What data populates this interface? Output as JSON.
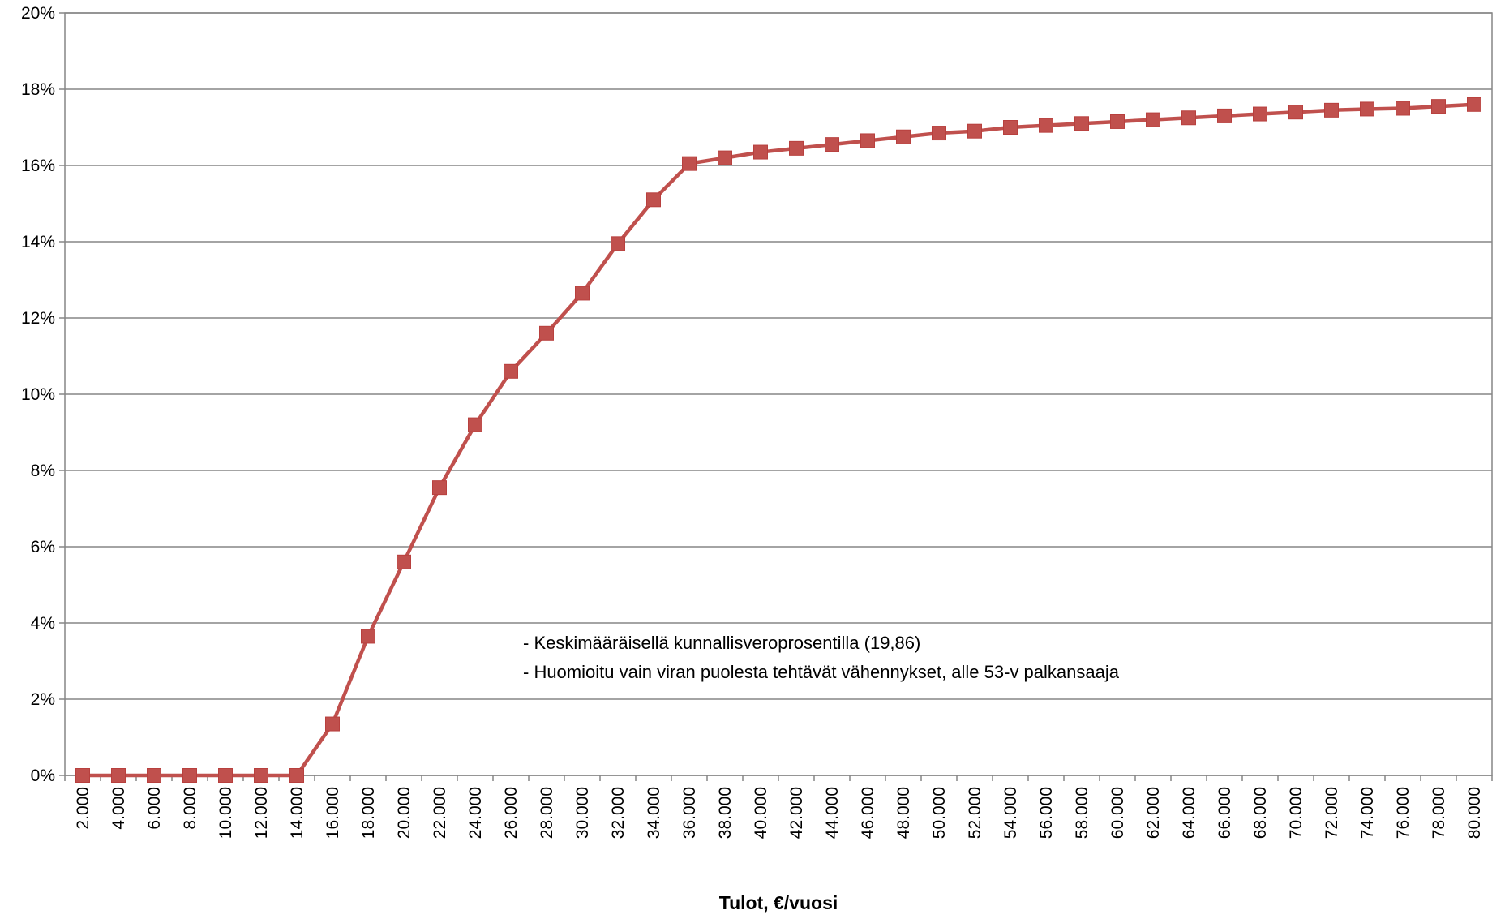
{
  "chart_data": {
    "type": "line",
    "title": "",
    "xlabel": "Tulot, €/vuosi",
    "ylabel": "",
    "ylim": [
      0,
      20
    ],
    "y_ticks": [
      "0%",
      "2%",
      "4%",
      "6%",
      "8%",
      "10%",
      "12%",
      "14%",
      "16%",
      "18%",
      "20%"
    ],
    "grid": true,
    "legend": "none",
    "line_color": "#c0504d",
    "categories": [
      "2.000",
      "4.000",
      "6.000",
      "8.000",
      "10.000",
      "12.000",
      "14.000",
      "16.000",
      "18.000",
      "20.000",
      "22.000",
      "24.000",
      "26.000",
      "28.000",
      "30.000",
      "32.000",
      "34.000",
      "36.000",
      "38.000",
      "40.000",
      "42.000",
      "44.000",
      "46.000",
      "48.000",
      "50.000",
      "52.000",
      "54.000",
      "56.000",
      "58.000",
      "60.000",
      "62.000",
      "64.000",
      "66.000",
      "68.000",
      "70.000",
      "72.000",
      "74.000",
      "76.000",
      "78.000",
      "80.000"
    ],
    "series": [
      {
        "values": [
          0,
          0,
          0,
          0,
          0,
          0,
          0,
          1.35,
          3.65,
          5.6,
          7.55,
          9.2,
          10.6,
          11.6,
          12.65,
          13.95,
          15.1,
          16.05,
          16.2,
          16.35,
          16.45,
          16.55,
          16.65,
          16.75,
          16.85,
          16.9,
          17.0,
          17.05,
          17.1,
          17.15,
          17.2,
          17.25,
          17.3,
          17.35,
          17.4,
          17.45,
          17.48,
          17.5,
          17.55,
          17.6
        ]
      }
    ],
    "annotations": [
      "- Keskimääräisellä kunnallisveroprosentilla (19,86)",
      "- Huomioitu vain viran puolesta tehtävät vähennykset, alle 53-v palkansaaja"
    ]
  }
}
